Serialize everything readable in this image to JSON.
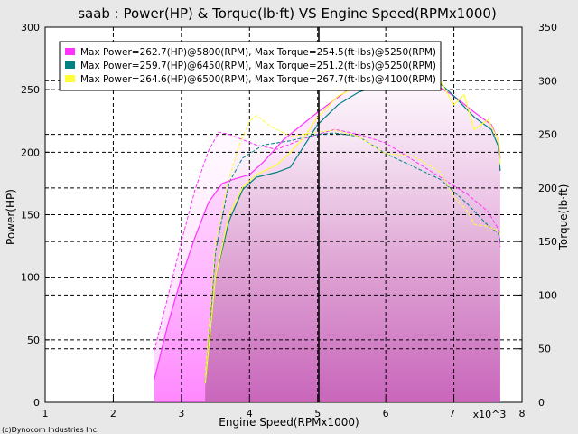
{
  "chart_data": {
    "type": "line",
    "title": "saab : Power(HP) & Torque(lb·ft) VS Engine Speed(RPMx1000)",
    "xlabel": "Engine Speed(RPMx1000)",
    "ylabel": "Power(HP)",
    "y2label": "Torque(lb·ft)",
    "xlim": [
      1,
      8
    ],
    "ylim": [
      0,
      300
    ],
    "y2lim": [
      0,
      350
    ],
    "x_ticks": [
      1,
      2,
      3,
      4,
      5,
      6,
      7,
      8
    ],
    "y_ticks": [
      0,
      50,
      100,
      150,
      200,
      250,
      300
    ],
    "y2_ticks": [
      0,
      50,
      100,
      150,
      200,
      250,
      300,
      350
    ],
    "x_multiplier_label": "x10^3",
    "grid": true,
    "legend_position": "top-left",
    "copyright": "(c)Dynocom Industries Inc.",
    "series": [
      {
        "name": "Max Power=262.7(HP)@5800(RPM), Max Torque=254.5(ft·lbs)@5250(RPM)",
        "color": "#ff33ff",
        "power": [
          [
            2.6,
            18
          ],
          [
            2.8,
            62
          ],
          [
            3.0,
            100
          ],
          [
            3.2,
            132
          ],
          [
            3.4,
            160
          ],
          [
            3.6,
            175
          ],
          [
            3.8,
            179
          ],
          [
            4.0,
            182
          ],
          [
            4.2,
            192
          ],
          [
            4.5,
            210
          ],
          [
            5.0,
            232
          ],
          [
            5.5,
            252
          ],
          [
            5.8,
            262.7
          ],
          [
            6.2,
            262
          ],
          [
            6.6,
            258
          ],
          [
            7.0,
            245
          ],
          [
            7.3,
            232
          ],
          [
            7.55,
            222
          ],
          [
            7.65,
            210
          ],
          [
            7.68,
            195
          ]
        ],
        "torque": [
          [
            2.6,
            48
          ],
          [
            2.8,
            98
          ],
          [
            3.0,
            150
          ],
          [
            3.2,
            198
          ],
          [
            3.4,
            235
          ],
          [
            3.55,
            252
          ],
          [
            3.7,
            250
          ],
          [
            3.9,
            245
          ],
          [
            4.1,
            240
          ],
          [
            4.4,
            236
          ],
          [
            4.8,
            246
          ],
          [
            5.25,
            254.5
          ],
          [
            5.6,
            250
          ],
          [
            6.0,
            242
          ],
          [
            6.4,
            226
          ],
          [
            6.8,
            210
          ],
          [
            7.2,
            194
          ],
          [
            7.5,
            178
          ],
          [
            7.65,
            162
          ],
          [
            7.68,
            145
          ]
        ]
      },
      {
        "name": "Max Power=259.7(HP)@6450(RPM), Max Torque=251.2(ft·lbs)@5250(RPM)",
        "color": "#008080",
        "power": [
          [
            3.35,
            15
          ],
          [
            3.5,
            100
          ],
          [
            3.7,
            145
          ],
          [
            3.9,
            170
          ],
          [
            4.1,
            180
          ],
          [
            4.4,
            184
          ],
          [
            4.6,
            188
          ],
          [
            4.8,
            205
          ],
          [
            5.0,
            222
          ],
          [
            5.3,
            238
          ],
          [
            5.6,
            248
          ],
          [
            6.0,
            255
          ],
          [
            6.45,
            259.7
          ],
          [
            6.8,
            255
          ],
          [
            7.0,
            245
          ],
          [
            7.3,
            228
          ],
          [
            7.55,
            218
          ],
          [
            7.65,
            205
          ],
          [
            7.68,
            185
          ]
        ],
        "torque": [
          [
            3.35,
            20
          ],
          [
            3.5,
            140
          ],
          [
            3.7,
            205
          ],
          [
            3.9,
            228
          ],
          [
            4.2,
            240
          ],
          [
            4.6,
            244
          ],
          [
            5.0,
            250
          ],
          [
            5.25,
            251.2
          ],
          [
            5.6,
            248
          ],
          [
            6.0,
            232
          ],
          [
            6.4,
            220
          ],
          [
            6.8,
            208
          ],
          [
            7.2,
            185
          ],
          [
            7.5,
            165
          ],
          [
            7.65,
            158
          ],
          [
            7.68,
            150
          ]
        ]
      },
      {
        "name": "Max Power=264.6(HP)@6500(RPM), Max Torque=267.7(ft·lbs)@4100(RPM)",
        "color": "#ffff33",
        "power": [
          [
            3.35,
            15
          ],
          [
            3.5,
            100
          ],
          [
            3.7,
            150
          ],
          [
            3.9,
            172
          ],
          [
            4.1,
            182
          ],
          [
            4.4,
            190
          ],
          [
            4.6,
            200
          ],
          [
            4.8,
            212
          ],
          [
            5.0,
            228
          ],
          [
            5.3,
            245
          ],
          [
            5.6,
            253
          ],
          [
            6.0,
            258
          ],
          [
            6.5,
            264.6
          ],
          [
            6.8,
            257
          ],
          [
            7.0,
            238
          ],
          [
            7.15,
            246
          ],
          [
            7.3,
            218
          ],
          [
            7.5,
            226
          ],
          [
            7.65,
            210
          ],
          [
            7.68,
            190
          ]
        ],
        "torque": [
          [
            3.35,
            25
          ],
          [
            3.5,
            150
          ],
          [
            3.7,
            210
          ],
          [
            3.85,
            240
          ],
          [
            4.0,
            262
          ],
          [
            4.1,
            267.7
          ],
          [
            4.3,
            258
          ],
          [
            4.6,
            248
          ],
          [
            5.0,
            252
          ],
          [
            5.25,
            254
          ],
          [
            5.6,
            248
          ],
          [
            6.0,
            232
          ],
          [
            6.4,
            230
          ],
          [
            6.8,
            215
          ],
          [
            7.0,
            192
          ],
          [
            7.2,
            178
          ],
          [
            7.3,
            166
          ],
          [
            7.5,
            164
          ],
          [
            7.65,
            160
          ],
          [
            7.68,
            155
          ]
        ]
      }
    ]
  }
}
